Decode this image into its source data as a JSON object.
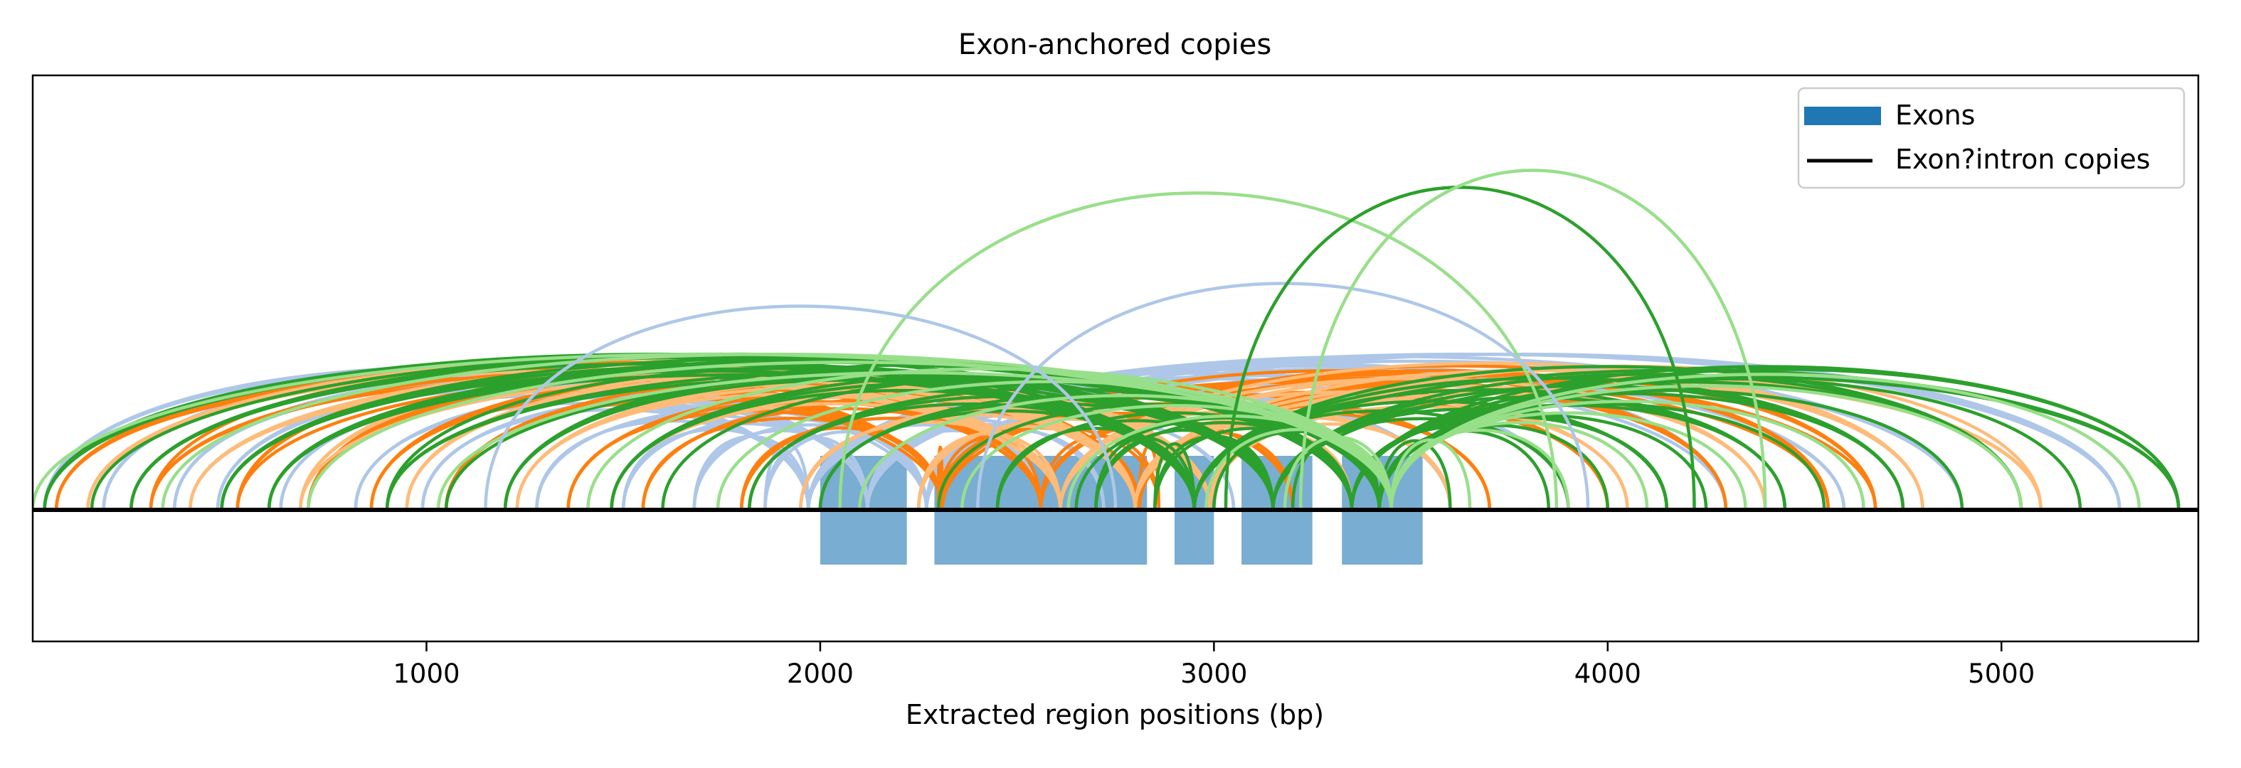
{
  "chart_data": {
    "type": "arc",
    "title": "Exon-anchored copies",
    "xlabel": "Extracted region positions (bp)",
    "ylabel": "",
    "xlim": [
      0,
      5500
    ],
    "xticks": [
      1000,
      2000,
      3000,
      4000,
      5000
    ],
    "grid": false,
    "legend": {
      "position": "top-right",
      "entries": [
        {
          "label": "Exons",
          "kind": "patch",
          "color": "#1f77b4"
        },
        {
          "label": "Exon?intron copies",
          "kind": "line",
          "color": "#000000"
        }
      ]
    },
    "baseline": {
      "color": "#000000"
    },
    "exons": [
      {
        "start": 2000,
        "end": 2220
      },
      {
        "start": 2290,
        "end": 2830
      },
      {
        "start": 2900,
        "end": 3000
      },
      {
        "start": 3070,
        "end": 3250
      },
      {
        "start": 3325,
        "end": 3530
      }
    ],
    "anchor_fans": [
      {
        "anchor": 2120,
        "color": "#aec7e8",
        "width_bp": 300,
        "targets": [
          30,
          180,
          360,
          470,
          630,
          820,
          990,
          1280,
          1500,
          1680,
          1860,
          2560,
          2720,
          3050,
          3600,
          3900,
          4300,
          4600,
          4900,
          5300
        ]
      },
      {
        "anchor": 2560,
        "color": "#ff7f0e",
        "width_bp": 500,
        "targets": [
          60,
          300,
          520,
          700,
          860,
          1050,
          1360,
          1550,
          1800,
          2300,
          2860,
          3200,
          3450,
          3700,
          4000,
          4300,
          4560,
          4680
        ]
      },
      {
        "anchor": 2800,
        "color": "#ffbb78",
        "width_bp": 380,
        "targets": [
          140,
          400,
          680,
          950,
          1230,
          1470,
          1950,
          2250,
          3350,
          3600,
          4050,
          4400,
          4800,
          5100
        ]
      },
      {
        "anchor": 3150,
        "color": "#2ca02c",
        "width_bp": 400,
        "targets": [
          30,
          250,
          480,
          600,
          900,
          1200,
          1470,
          1820,
          2000,
          2450,
          2700,
          2850,
          3900,
          4150,
          4450,
          4750,
          5050,
          5450
        ]
      },
      {
        "anchor": 3420,
        "color": "#2ca02c",
        "width_bp": 0,
        "targets": [
          150,
          600,
          1050,
          1600,
          2300,
          2650,
          3000,
          3200,
          3600,
          3850,
          4000,
          4250,
          4550,
          4900,
          5200,
          5450
        ]
      },
      {
        "anchor": 3450,
        "color": "#98df8a",
        "width_bp": 0,
        "targets": [
          0,
          330,
          700,
          1030,
          1410,
          1740,
          2100,
          2360,
          2630,
          2980,
          3180,
          3650,
          3900,
          4100,
          4350,
          4650,
          5050,
          5350
        ]
      }
    ],
    "extra_arcs": [
      {
        "x1": 2050,
        "x2": 3870,
        "color": "#98df8a",
        "peak": 0.56
      },
      {
        "x1": 1150,
        "x2": 2750,
        "color": "#aec7e8",
        "peak": 0.36
      },
      {
        "x1": 2400,
        "x2": 3950,
        "color": "#aec7e8",
        "peak": 0.4
      },
      {
        "x1": 3030,
        "x2": 4220,
        "color": "#2ca02c",
        "peak": 0.57
      },
      {
        "x1": 3220,
        "x2": 4400,
        "color": "#98df8a",
        "peak": 0.6
      }
    ]
  }
}
